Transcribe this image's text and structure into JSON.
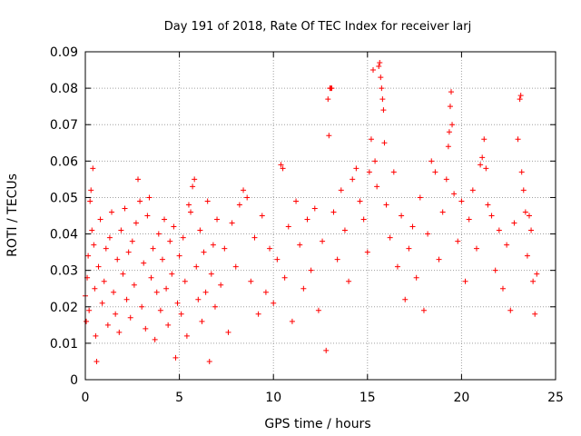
{
  "chart_data": {
    "type": "scatter",
    "title": "Day 191 of 2018, Rate Of TEC Index for receiver larj",
    "xlabel": "GPS time / hours",
    "ylabel": "ROTI / TECUs",
    "xlim": [
      0,
      25
    ],
    "ylim": [
      0,
      0.09
    ],
    "xticks": [
      0,
      5,
      10,
      15,
      20,
      25
    ],
    "xtick_labels": [
      "0",
      "5",
      "10",
      "15",
      "20",
      "25"
    ],
    "yticks": [
      0,
      0.01,
      0.02,
      0.03,
      0.04,
      0.05,
      0.06,
      0.07,
      0.08,
      0.09
    ],
    "ytick_labels": [
      "0",
      "0.01",
      "0.02",
      "0.03",
      "0.04",
      "0.05",
      "0.06",
      "0.07",
      "0.08",
      "0.09"
    ],
    "grid": true,
    "marker": "+",
    "series": [
      {
        "name": "ROTI",
        "color": "#ff0000",
        "points": [
          [
            0.0,
            0.023
          ],
          [
            0.05,
            0.016
          ],
          [
            0.1,
            0.028
          ],
          [
            0.15,
            0.034
          ],
          [
            0.2,
            0.019
          ],
          [
            0.25,
            0.049
          ],
          [
            0.3,
            0.052
          ],
          [
            0.35,
            0.041
          ],
          [
            0.4,
            0.058
          ],
          [
            0.45,
            0.037
          ],
          [
            0.5,
            0.025
          ],
          [
            0.55,
            0.012
          ],
          [
            0.6,
            0.005
          ],
          [
            0.7,
            0.031
          ],
          [
            0.8,
            0.044
          ],
          [
            0.9,
            0.021
          ],
          [
            1.0,
            0.027
          ],
          [
            1.1,
            0.036
          ],
          [
            1.2,
            0.015
          ],
          [
            1.3,
            0.039
          ],
          [
            1.4,
            0.046
          ],
          [
            1.5,
            0.024
          ],
          [
            1.6,
            0.018
          ],
          [
            1.7,
            0.033
          ],
          [
            1.8,
            0.013
          ],
          [
            1.9,
            0.041
          ],
          [
            2.0,
            0.029
          ],
          [
            2.1,
            0.047
          ],
          [
            2.2,
            0.022
          ],
          [
            2.3,
            0.035
          ],
          [
            2.4,
            0.017
          ],
          [
            2.5,
            0.038
          ],
          [
            2.6,
            0.026
          ],
          [
            2.7,
            0.043
          ],
          [
            2.8,
            0.055
          ],
          [
            2.9,
            0.049
          ],
          [
            3.0,
            0.02
          ],
          [
            3.1,
            0.032
          ],
          [
            3.2,
            0.014
          ],
          [
            3.3,
            0.045
          ],
          [
            3.4,
            0.05
          ],
          [
            3.5,
            0.028
          ],
          [
            3.6,
            0.036
          ],
          [
            3.7,
            0.011
          ],
          [
            3.8,
            0.024
          ],
          [
            3.9,
            0.04
          ],
          [
            4.0,
            0.019
          ],
          [
            4.1,
            0.033
          ],
          [
            4.2,
            0.044
          ],
          [
            4.3,
            0.025
          ],
          [
            4.4,
            0.015
          ],
          [
            4.5,
            0.038
          ],
          [
            4.6,
            0.029
          ],
          [
            4.7,
            0.042
          ],
          [
            4.8,
            0.006
          ],
          [
            4.9,
            0.021
          ],
          [
            5.0,
            0.034
          ],
          [
            5.1,
            0.018
          ],
          [
            5.2,
            0.039
          ],
          [
            5.3,
            0.027
          ],
          [
            5.4,
            0.012
          ],
          [
            5.5,
            0.048
          ],
          [
            5.6,
            0.046
          ],
          [
            5.7,
            0.053
          ],
          [
            5.8,
            0.055
          ],
          [
            5.9,
            0.031
          ],
          [
            6.0,
            0.022
          ],
          [
            6.1,
            0.041
          ],
          [
            6.2,
            0.016
          ],
          [
            6.3,
            0.035
          ],
          [
            6.4,
            0.024
          ],
          [
            6.5,
            0.049
          ],
          [
            6.6,
            0.005
          ],
          [
            6.7,
            0.029
          ],
          [
            6.8,
            0.037
          ],
          [
            6.9,
            0.02
          ],
          [
            7.0,
            0.044
          ],
          [
            7.2,
            0.026
          ],
          [
            7.4,
            0.036
          ],
          [
            7.6,
            0.013
          ],
          [
            7.8,
            0.043
          ],
          [
            8.0,
            0.031
          ],
          [
            8.2,
            0.048
          ],
          [
            8.4,
            0.052
          ],
          [
            8.6,
            0.05
          ],
          [
            8.8,
            0.027
          ],
          [
            9.0,
            0.039
          ],
          [
            9.2,
            0.018
          ],
          [
            9.4,
            0.045
          ],
          [
            9.6,
            0.024
          ],
          [
            9.8,
            0.036
          ],
          [
            10.0,
            0.021
          ],
          [
            10.2,
            0.033
          ],
          [
            10.4,
            0.059
          ],
          [
            10.5,
            0.058
          ],
          [
            10.6,
            0.028
          ],
          [
            10.8,
            0.042
          ],
          [
            11.0,
            0.016
          ],
          [
            11.2,
            0.049
          ],
          [
            11.4,
            0.037
          ],
          [
            11.6,
            0.025
          ],
          [
            11.8,
            0.044
          ],
          [
            12.0,
            0.03
          ],
          [
            12.2,
            0.047
          ],
          [
            12.4,
            0.019
          ],
          [
            12.6,
            0.038
          ],
          [
            12.8,
            0.008
          ],
          [
            12.9,
            0.077
          ],
          [
            12.95,
            0.067
          ],
          [
            13.0,
            0.08
          ],
          [
            13.05,
            0.08
          ],
          [
            13.1,
            0.08
          ],
          [
            13.2,
            0.046
          ],
          [
            13.4,
            0.033
          ],
          [
            13.6,
            0.052
          ],
          [
            13.8,
            0.041
          ],
          [
            14.0,
            0.027
          ],
          [
            14.2,
            0.055
          ],
          [
            14.4,
            0.058
          ],
          [
            14.6,
            0.049
          ],
          [
            14.8,
            0.044
          ],
          [
            15.0,
            0.035
          ],
          [
            15.1,
            0.057
          ],
          [
            15.2,
            0.066
          ],
          [
            15.3,
            0.085
          ],
          [
            15.4,
            0.06
          ],
          [
            15.5,
            0.053
          ],
          [
            15.6,
            0.086
          ],
          [
            15.65,
            0.087
          ],
          [
            15.7,
            0.083
          ],
          [
            15.75,
            0.08
          ],
          [
            15.8,
            0.077
          ],
          [
            15.85,
            0.074
          ],
          [
            15.9,
            0.065
          ],
          [
            16.0,
            0.048
          ],
          [
            16.2,
            0.039
          ],
          [
            16.4,
            0.057
          ],
          [
            16.6,
            0.031
          ],
          [
            16.8,
            0.045
          ],
          [
            17.0,
            0.022
          ],
          [
            17.2,
            0.036
          ],
          [
            17.4,
            0.042
          ],
          [
            17.6,
            0.028
          ],
          [
            17.8,
            0.05
          ],
          [
            18.0,
            0.019
          ],
          [
            18.2,
            0.04
          ],
          [
            18.4,
            0.06
          ],
          [
            18.6,
            0.057
          ],
          [
            18.8,
            0.033
          ],
          [
            19.0,
            0.046
          ],
          [
            19.2,
            0.055
          ],
          [
            19.3,
            0.064
          ],
          [
            19.35,
            0.068
          ],
          [
            19.4,
            0.075
          ],
          [
            19.45,
            0.079
          ],
          [
            19.5,
            0.07
          ],
          [
            19.6,
            0.051
          ],
          [
            19.8,
            0.038
          ],
          [
            20.0,
            0.049
          ],
          [
            20.2,
            0.027
          ],
          [
            20.4,
            0.044
          ],
          [
            20.6,
            0.052
          ],
          [
            20.8,
            0.036
          ],
          [
            21.0,
            0.059
          ],
          [
            21.1,
            0.061
          ],
          [
            21.2,
            0.066
          ],
          [
            21.3,
            0.058
          ],
          [
            21.4,
            0.048
          ],
          [
            21.6,
            0.045
          ],
          [
            21.8,
            0.03
          ],
          [
            22.0,
            0.041
          ],
          [
            22.2,
            0.025
          ],
          [
            22.4,
            0.037
          ],
          [
            22.6,
            0.019
          ],
          [
            22.8,
            0.043
          ],
          [
            23.0,
            0.066
          ],
          [
            23.1,
            0.077
          ],
          [
            23.15,
            0.078
          ],
          [
            23.2,
            0.057
          ],
          [
            23.3,
            0.052
          ],
          [
            23.4,
            0.046
          ],
          [
            23.5,
            0.034
          ],
          [
            23.6,
            0.045
          ],
          [
            23.7,
            0.041
          ],
          [
            23.8,
            0.027
          ],
          [
            23.9,
            0.018
          ],
          [
            24.0,
            0.029
          ]
        ]
      }
    ]
  }
}
